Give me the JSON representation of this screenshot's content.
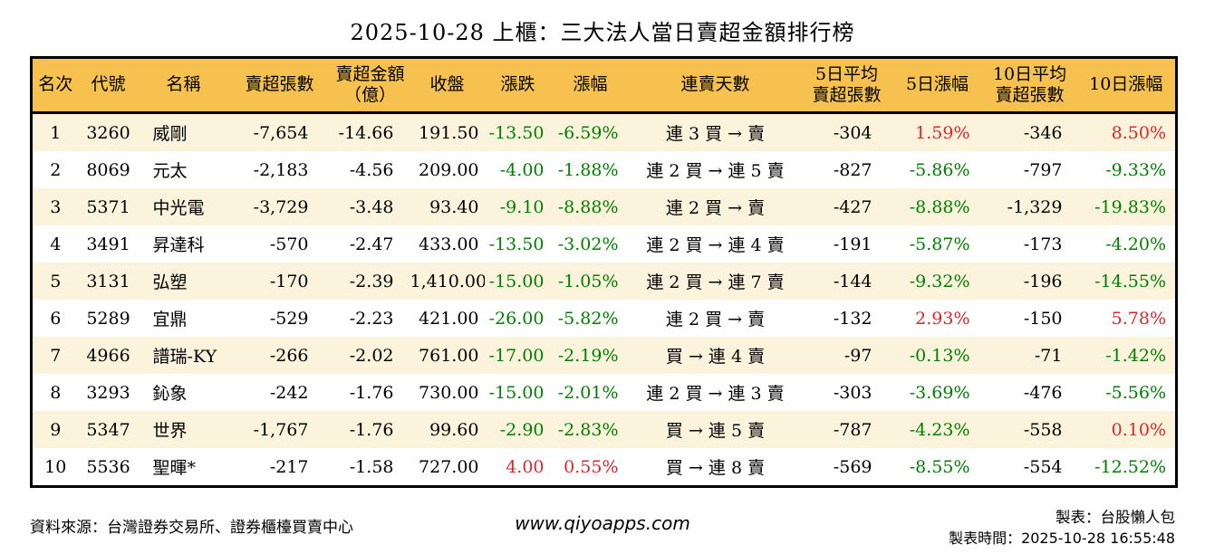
{
  "title": "2025-10-28 上櫃：三大法人當日賣超金額排行榜",
  "chart_data": {
    "type": "table",
    "title": "2025-10-28 上櫃：三大法人當日賣超金額排行榜",
    "columns": [
      "名次",
      "代號",
      "名稱",
      "賣超張數",
      "賣超金額\n（億）",
      "收盤",
      "漲跌",
      "漲幅",
      "連賣天數",
      "5日平均\n賣超張數",
      "5日漲幅",
      "10日平均\n賣超張數",
      "10日漲幅"
    ],
    "rows": [
      [
        "1",
        "3260",
        "威剛",
        "-7,654",
        "-14.66",
        "191.50",
        "-13.50",
        "-6.59%",
        "連 3 買 → 賣",
        "-304",
        "1.59%",
        "-346",
        "8.50%"
      ],
      [
        "2",
        "8069",
        "元太",
        "-2,183",
        "-4.56",
        "209.00",
        "-4.00",
        "-1.88%",
        "連 2 買 → 連 5 賣",
        "-827",
        "-5.86%",
        "-797",
        "-9.33%"
      ],
      [
        "3",
        "5371",
        "中光電",
        "-3,729",
        "-3.48",
        "93.40",
        "-9.10",
        "-8.88%",
        "連 2 買 → 賣",
        "-427",
        "-8.88%",
        "-1,329",
        "-19.83%"
      ],
      [
        "4",
        "3491",
        "昇達科",
        "-570",
        "-2.47",
        "433.00",
        "-13.50",
        "-3.02%",
        "連 2 買 → 連 4 賣",
        "-191",
        "-5.87%",
        "-173",
        "-4.20%"
      ],
      [
        "5",
        "3131",
        "弘塑",
        "-170",
        "-2.39",
        "1,410.00",
        "-15.00",
        "-1.05%",
        "連 2 買 → 連 7 賣",
        "-144",
        "-9.32%",
        "-196",
        "-14.55%"
      ],
      [
        "6",
        "5289",
        "宜鼎",
        "-529",
        "-2.23",
        "421.00",
        "-26.00",
        "-5.82%",
        "連 2 買 → 賣",
        "-132",
        "2.93%",
        "-150",
        "5.78%"
      ],
      [
        "7",
        "4966",
        "譜瑞-KY",
        "-266",
        "-2.02",
        "761.00",
        "-17.00",
        "-2.19%",
        "買 → 連 4 賣",
        "-97",
        "-0.13%",
        "-71",
        "-1.42%"
      ],
      [
        "8",
        "3293",
        "鈊象",
        "-242",
        "-1.76",
        "730.00",
        "-15.00",
        "-2.01%",
        "連 2 買 → 連 3 賣",
        "-303",
        "-3.69%",
        "-476",
        "-5.56%"
      ],
      [
        "9",
        "5347",
        "世界",
        "-1,767",
        "-1.76",
        "99.60",
        "-2.90",
        "-2.83%",
        "買 → 連 5 賣",
        "-787",
        "-4.23%",
        "-558",
        "0.10%"
      ],
      [
        "10",
        "5536",
        "聖暉*",
        "-217",
        "-1.58",
        "727.00",
        "4.00",
        "0.55%",
        "買 → 連 8 賣",
        "-569",
        "-8.55%",
        "-554",
        "-12.52%"
      ]
    ],
    "signed_color_columns": [
      6,
      7,
      10,
      12
    ],
    "colors": {
      "up_red": "#d7282d",
      "down_green": "#008000",
      "header_bg": "#f6c14e",
      "row_stripe": "#fcf3dc",
      "border": "#000000"
    },
    "layout_hints": {
      "stripes": "odd rows cream, even rows white",
      "grid": "outer black border + line under header only"
    }
  },
  "footer": {
    "source": "資料來源：台灣證券交易所、證券櫃檯買賣中心",
    "website": "www.qiyoapps.com",
    "maker": "製表：台股懶人包",
    "timestamp": "製表時間：2025-10-28 16:55:48"
  }
}
